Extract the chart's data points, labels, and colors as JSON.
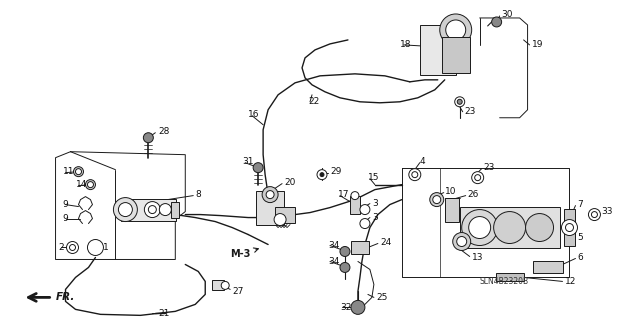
{
  "bg_color": "#ffffff",
  "line_color": "#1a1a1a",
  "label_color": "#111111",
  "label_fontsize": 6.5,
  "figsize": [
    6.4,
    3.19
  ],
  "dpi": 100,
  "diagram_code": "SLN4B2320B"
}
